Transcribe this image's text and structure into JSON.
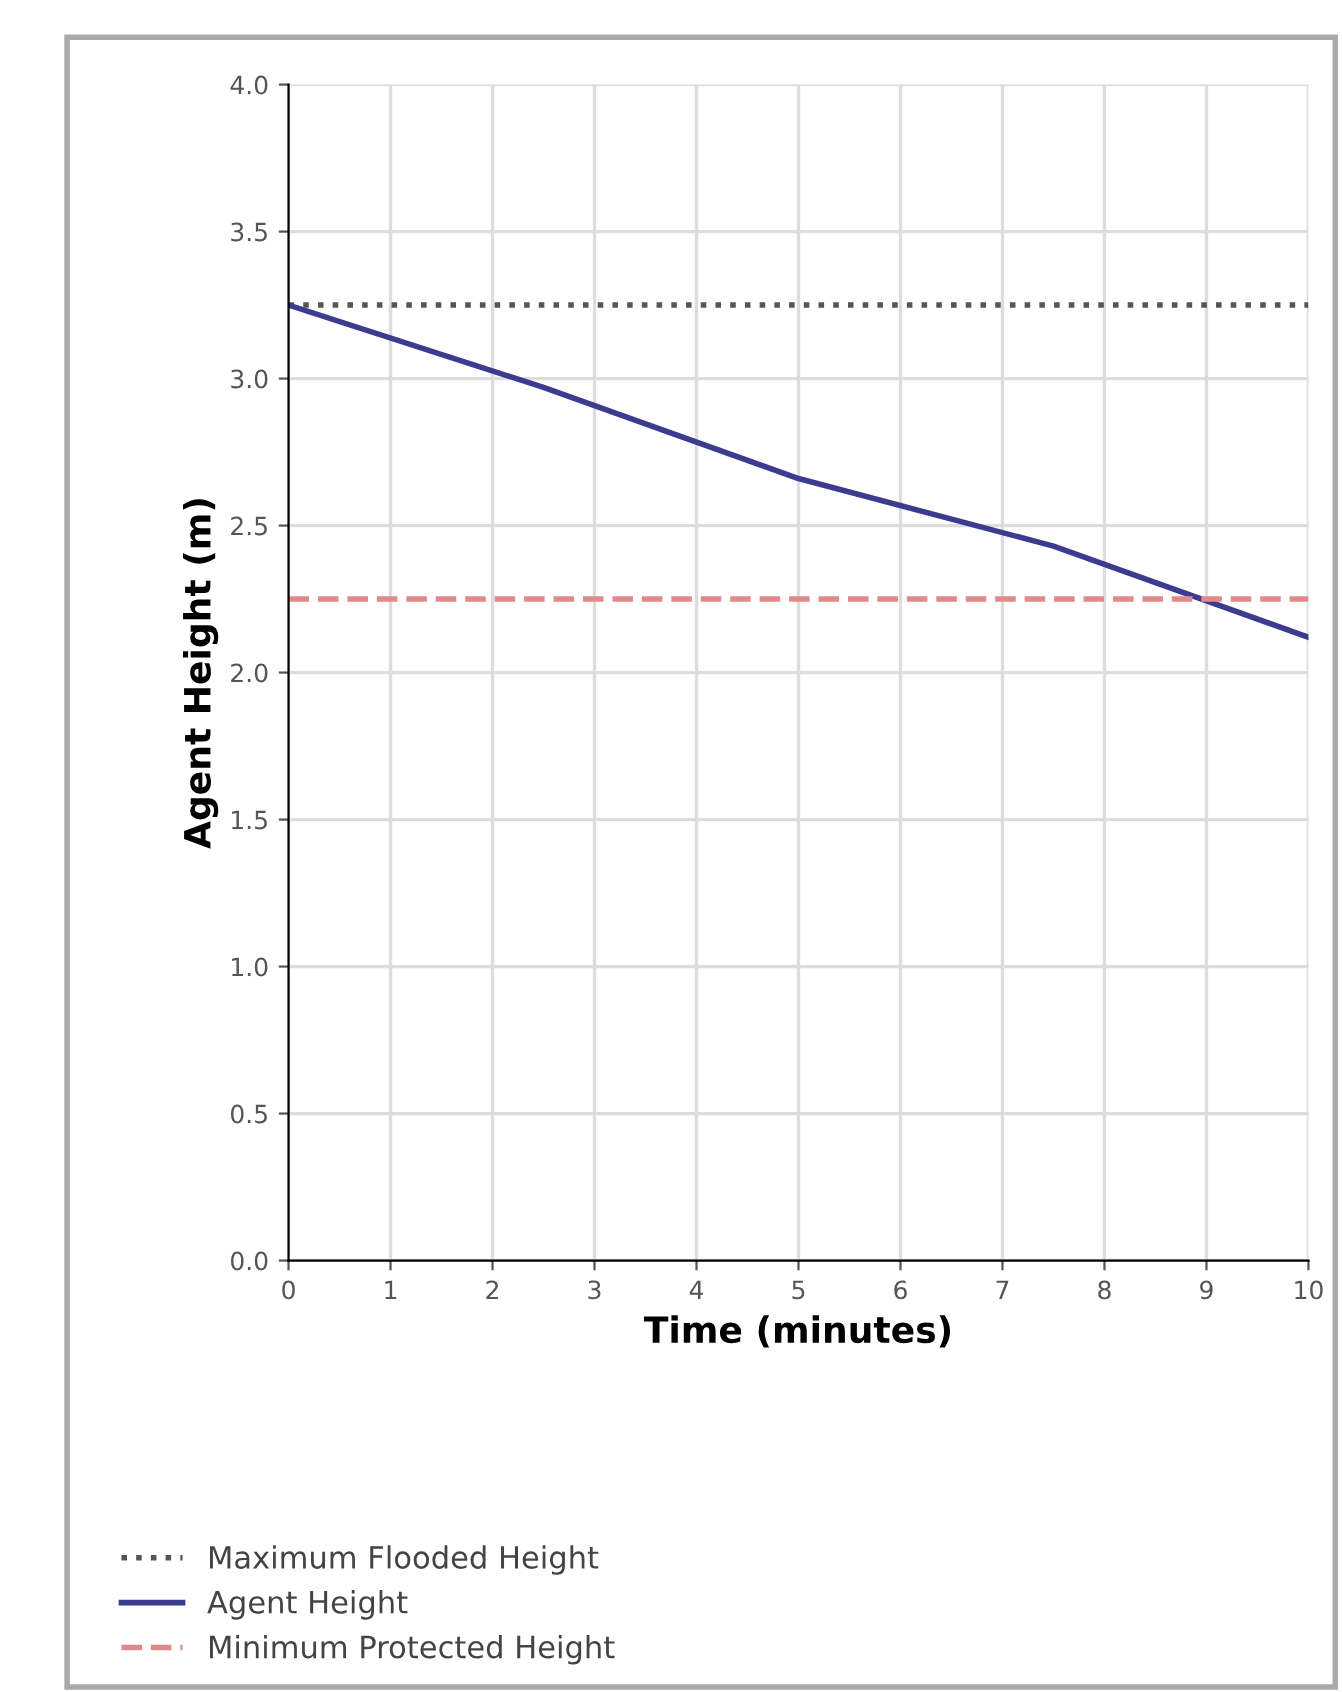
{
  "chart_data": {
    "type": "line",
    "xlabel": "Time (minutes)",
    "ylabel": "Agent Height (m)",
    "xlim": [
      0,
      10
    ],
    "ylim": [
      0,
      4
    ],
    "xticks": [
      0,
      1,
      2,
      3,
      4,
      5,
      6,
      7,
      8,
      9,
      10
    ],
    "yticks": [
      {
        "value": 0,
        "label": "0.0"
      },
      {
        "value": 0.5,
        "label": "0.5"
      },
      {
        "value": 1,
        "label": "1.0"
      },
      {
        "value": 1.5,
        "label": "1.5"
      },
      {
        "value": 2,
        "label": "2.0"
      },
      {
        "value": 2.5,
        "label": "2.5"
      },
      {
        "value": 3,
        "label": "3.0"
      },
      {
        "value": 3.5,
        "label": "3.5"
      },
      {
        "value": 4,
        "label": "4.0"
      }
    ],
    "grid": true,
    "legend": "bottom left",
    "series": [
      {
        "name": "Maximum Flooded Height",
        "color": "#555555",
        "line_style": "dotted",
        "x": [
          0,
          10
        ],
        "values": [
          3.25,
          3.25
        ]
      },
      {
        "name": "Agent Height",
        "color": "#3b3b8f",
        "line_style": "solid",
        "x": [
          0,
          2.5,
          5,
          7.5,
          10
        ],
        "values": [
          3.25,
          2.97,
          2.66,
          2.43,
          2.12
        ]
      },
      {
        "name": "Minimum Protected Height",
        "color": "#e08a8a",
        "line_style": "dashed",
        "x": [
          0,
          10
        ],
        "values": [
          2.25,
          2.25
        ]
      }
    ]
  }
}
